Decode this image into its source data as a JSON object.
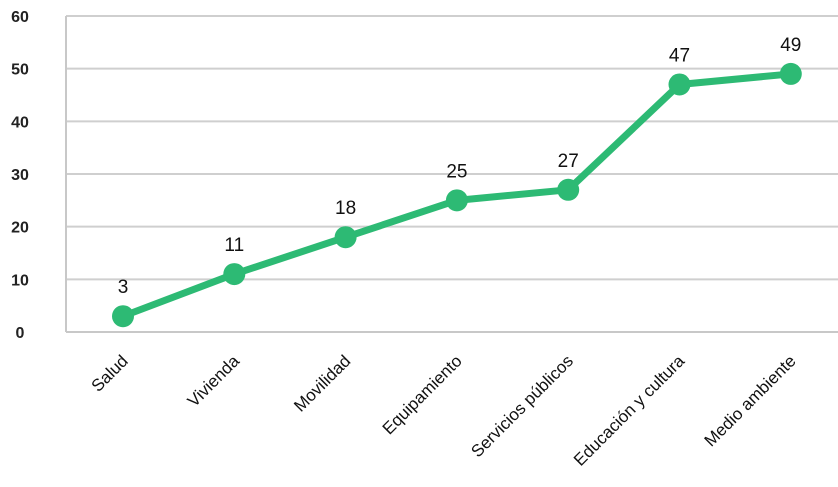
{
  "chart_data": {
    "type": "line",
    "categories": [
      "Salud",
      "Vivienda",
      "Movilidad",
      "Equipamiento",
      "Servicios públicos",
      "Educación y cultura",
      "Medio ambiente"
    ],
    "series": [
      {
        "values": [
          3,
          11,
          18,
          25,
          27,
          47,
          49
        ],
        "labels": [
          "3",
          "11",
          "18",
          "25",
          "27",
          "47",
          "49"
        ]
      }
    ],
    "yticks": [
      "0",
      "10",
      "20",
      "30",
      "40",
      "50",
      "60"
    ],
    "ylim": [
      0,
      60
    ],
    "grid": true,
    "legend": "none",
    "line_color": "#2dba74"
  }
}
